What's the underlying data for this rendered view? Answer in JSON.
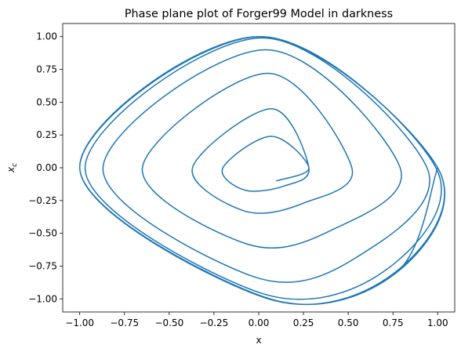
{
  "chart_data": {
    "type": "line",
    "title": "Phase plane plot of Forger99 Model in darkness",
    "xlabel": "x",
    "ylabel": "x_c",
    "ylabel_display": "xc",
    "xlim": [
      -1.095,
      1.095
    ],
    "ylim": [
      -1.1,
      1.1
    ],
    "xticks": [
      -1.0,
      -0.75,
      -0.5,
      -0.25,
      0.0,
      0.25,
      0.5,
      0.75,
      1.0
    ],
    "xtick_labels": [
      "−1.00",
      "−0.75",
      "−0.50",
      "−0.25",
      "0.00",
      "0.25",
      "0.50",
      "0.75",
      "1.00"
    ],
    "yticks": [
      1.0,
      0.75,
      0.5,
      0.25,
      0.0,
      -0.25,
      -0.5,
      -0.75,
      -1.0
    ],
    "ytick_labels": [
      "1.00",
      "0.75",
      "0.50",
      "0.25",
      "0.00",
      "−0.25",
      "−0.50",
      "−0.75",
      "−1.00"
    ],
    "grid": false,
    "series": [
      {
        "color": "#1f77b4",
        "points": [
          [
            0.1,
            -0.1
          ],
          [
            0.28,
            0.0
          ],
          [
            0.07,
            0.24
          ],
          [
            -0.2,
            0.0
          ],
          [
            -0.08,
            -0.17
          ],
          [
            0.14,
            -0.14
          ],
          [
            0.28,
            0.0
          ],
          [
            0.07,
            0.45
          ],
          [
            -0.37,
            0.0
          ],
          [
            -0.08,
            -0.33
          ],
          [
            0.25,
            -0.27
          ],
          [
            0.52,
            0.0
          ],
          [
            0.05,
            0.72
          ],
          [
            -0.65,
            0.0
          ],
          [
            -0.07,
            -0.58
          ],
          [
            0.4,
            -0.48
          ],
          [
            0.79,
            0.0
          ],
          [
            0.04,
            0.9
          ],
          [
            -0.87,
            0.0
          ],
          [
            -0.03,
            -0.83
          ],
          [
            0.55,
            -0.68
          ],
          [
            0.94,
            0.0
          ],
          [
            0.02,
            0.99
          ],
          [
            -0.97,
            0.0
          ],
          [
            0.0,
            -0.95
          ],
          [
            0.7,
            -0.79
          ],
          [
            0.99,
            0.0
          ],
          [
            0.01,
            1.0
          ],
          [
            -1.0,
            0.0
          ],
          [
            0.03,
            -0.99
          ],
          [
            0.75,
            -0.81
          ],
          [
            1.0,
            0.0
          ],
          [
            0.0,
            1.0
          ],
          [
            -1.0,
            0.0
          ],
          [
            0.04,
            -0.99
          ],
          [
            0.76,
            -0.81
          ],
          [
            1.0,
            0.0
          ],
          [
            0.0,
            1.0
          ],
          [
            -1.0,
            0.0
          ],
          [
            0.04,
            -0.99
          ],
          [
            0.76,
            -0.81
          ],
          [
            1.0,
            0.0
          ]
        ]
      }
    ]
  }
}
